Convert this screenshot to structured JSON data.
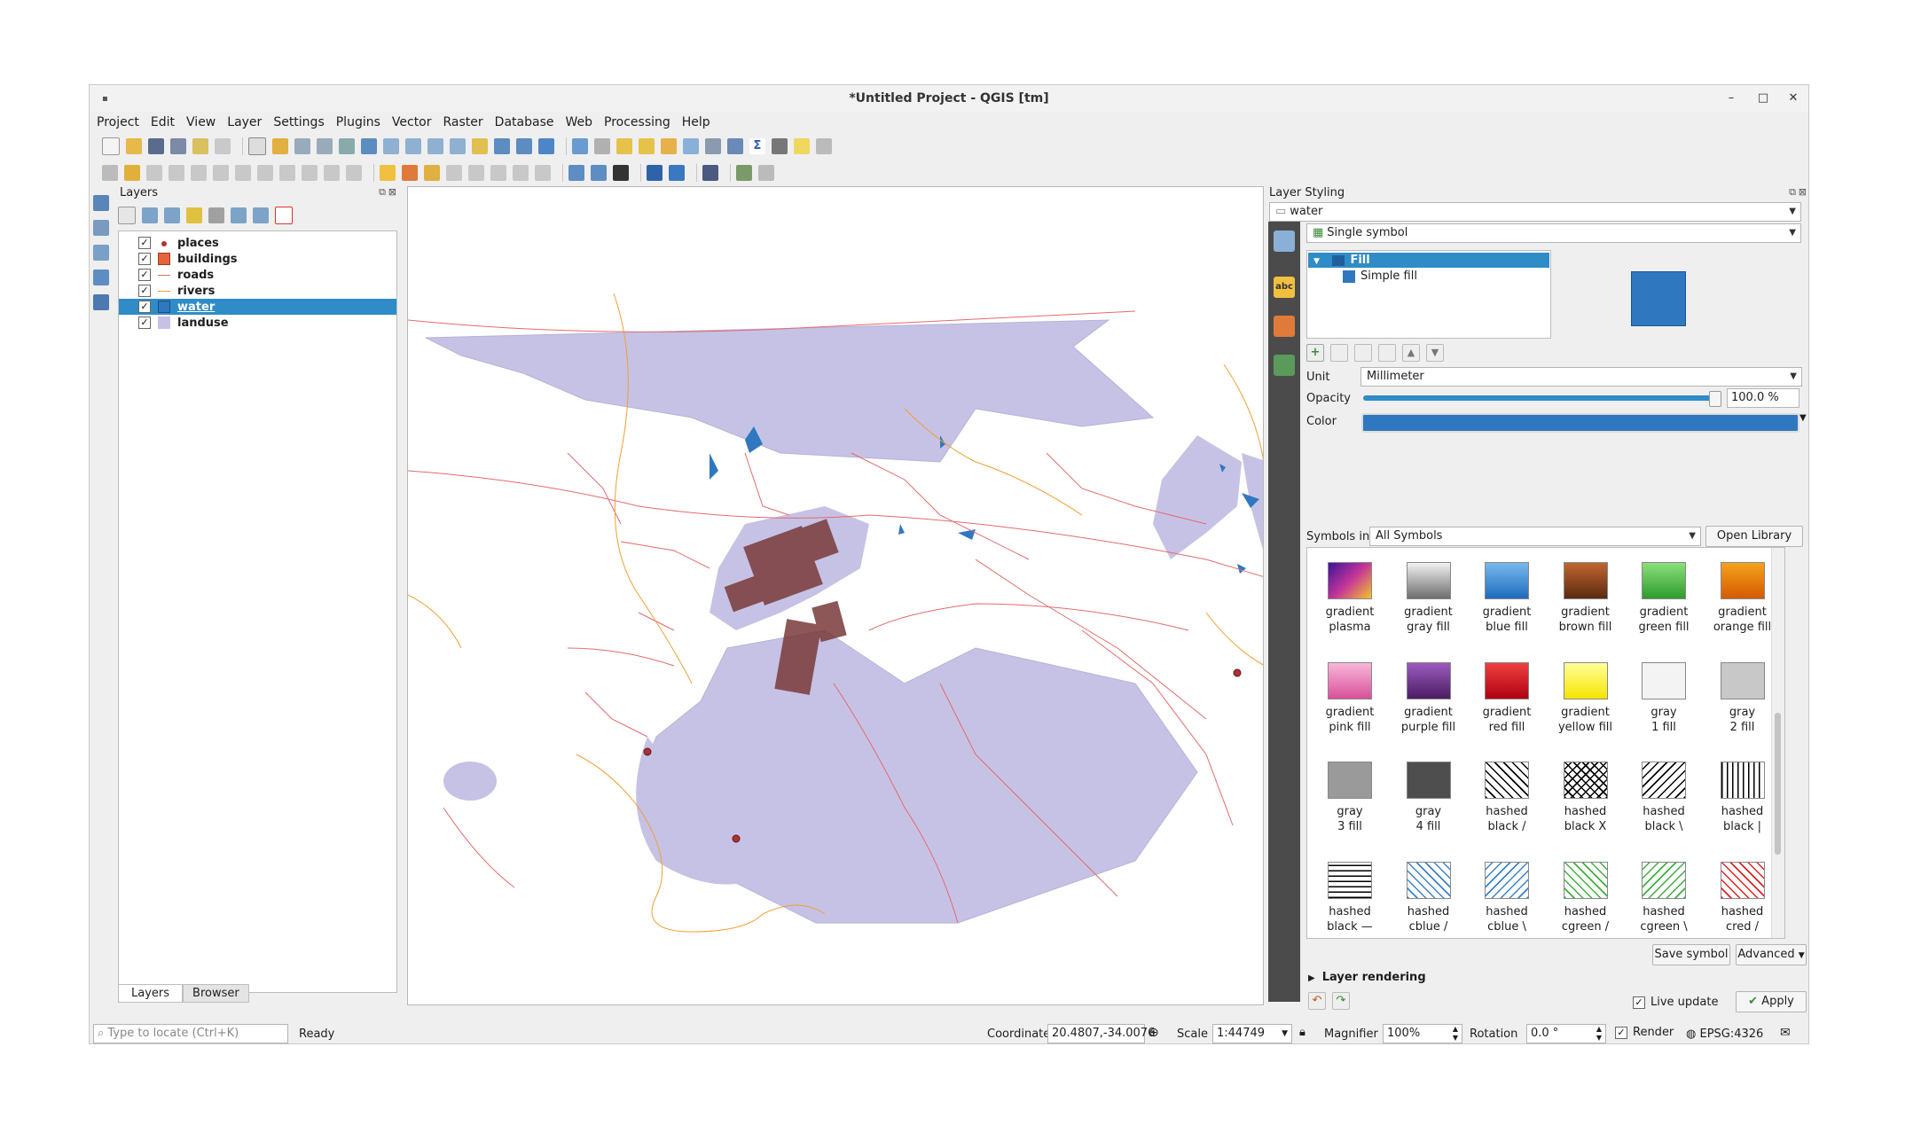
{
  "window": {
    "title": "*Untitled Project - QGIS [tm]",
    "minimize": "–",
    "maximize": "□",
    "close": "✕"
  },
  "menu": [
    "Project",
    "Edit",
    "View",
    "Layer",
    "Settings",
    "Plugins",
    "Vector",
    "Raster",
    "Database",
    "Web",
    "Processing",
    "Help"
  ],
  "layers_panel": {
    "title": "Layers",
    "layers": [
      {
        "name": "places",
        "checked": true,
        "symbol": "point",
        "color": "#b03030"
      },
      {
        "name": "buildings",
        "checked": true,
        "symbol": "polygon",
        "color": "#e4643c"
      },
      {
        "name": "roads",
        "checked": true,
        "symbol": "line",
        "color": "#e46a6a"
      },
      {
        "name": "rivers",
        "checked": true,
        "symbol": "line",
        "color": "#f0a030"
      },
      {
        "name": "water",
        "checked": true,
        "symbol": "polygon",
        "color": "#2f78bf",
        "selected": true
      },
      {
        "name": "landuse",
        "checked": true,
        "symbol": "polygon",
        "color": "#c6c2e6"
      }
    ],
    "tabs": [
      "Layers",
      "Browser"
    ]
  },
  "style_panel": {
    "title": "Layer Styling",
    "layer_combo": "water",
    "renderer": "Single symbol",
    "tree": {
      "root": "Fill",
      "child": "Simple fill"
    },
    "preview_color": "#2f78bf",
    "unit_label": "Unit",
    "unit_value": "Millimeter",
    "opacity_label": "Opacity",
    "opacity_value": "100.0 %",
    "opacity_fraction": 1.0,
    "color_label": "Color",
    "color_value": "#2f78bf",
    "symbols_in_label": "Symbols in",
    "symbols_in_value": "All Symbols",
    "open_library": "Open Library",
    "symbols": [
      {
        "l1": "gradient",
        "l2": "plasma",
        "style": "linear-gradient(135deg,#3b1696,#c3339a,#f4c22a)"
      },
      {
        "l1": "gradient",
        "l2": "gray fill",
        "style": "linear-gradient(#f1f1f1,#6d6d6d)"
      },
      {
        "l1": "gradient",
        "l2": "blue fill",
        "style": "linear-gradient(#77b9ee,#1f6bbd)"
      },
      {
        "l1": "gradient",
        "l2": "brown fill",
        "style": "linear-gradient(#c0662e,#5a2a12)"
      },
      {
        "l1": "gradient",
        "l2": "green fill",
        "style": "linear-gradient(#8be07a,#2e9b2e)"
      },
      {
        "l1": "gradient",
        "l2": "orange fill",
        "style": "linear-gradient(#f6a11d,#d45b00)"
      },
      {
        "l1": "gradient",
        "l2": "pink fill",
        "style": "linear-gradient(#f7b7d8,#d9509a)"
      },
      {
        "l1": "gradient",
        "l2": "purple fill",
        "style": "linear-gradient(#9c5bbd,#4b1c63)"
      },
      {
        "l1": "gradient",
        "l2": "red fill",
        "style": "linear-gradient(#ef4040,#b00010)"
      },
      {
        "l1": "gradient",
        "l2": "yellow fill",
        "style": "linear-gradient(#ffff9a,#f6e400)"
      },
      {
        "l1": "gray",
        "l2": "1 fill",
        "style": "#f3f3f3"
      },
      {
        "l1": "gray",
        "l2": "2 fill",
        "style": "#c8c8c8"
      },
      {
        "l1": "gray",
        "l2": "3 fill",
        "style": "#9a9a9a"
      },
      {
        "l1": "gray",
        "l2": "4 fill",
        "style": "#4e4e4e"
      },
      {
        "l1": "hashed",
        "l2": "black /",
        "style": "repeating-linear-gradient(45deg,#000 0 1.5px,#fff 1.5px 7px)"
      },
      {
        "l1": "hashed",
        "l2": "black X",
        "style": "repeating-linear-gradient(45deg,#000 0 1.5px,transparent 1.5px 7px),repeating-linear-gradient(-45deg,#000 0 1.5px,#fff 1.5px 7px)"
      },
      {
        "l1": "hashed",
        "l2": "black \\",
        "style": "repeating-linear-gradient(-45deg,#000 0 1.5px,#fff 1.5px 7px)"
      },
      {
        "l1": "hashed",
        "l2": "black |",
        "style": "repeating-linear-gradient(90deg,#000 0 1.5px,#fff 1.5px 6px)"
      },
      {
        "l1": "hashed",
        "l2": "black —",
        "style": "repeating-linear-gradient(0deg,#000 0 1.5px,#fff 1.5px 6px)"
      },
      {
        "l1": "hashed",
        "l2": "cblue /",
        "style": "repeating-linear-gradient(45deg,#3b82c7 0 1.5px,#fff 1.5px 7px)"
      },
      {
        "l1": "hashed",
        "l2": "cblue \\",
        "style": "repeating-linear-gradient(-45deg,#3b82c7 0 1.5px,#fff 1.5px 7px)"
      },
      {
        "l1": "hashed",
        "l2": "cgreen /",
        "style": "repeating-linear-gradient(45deg,#3fae3f 0 1.5px,#fff 1.5px 7px)"
      },
      {
        "l1": "hashed",
        "l2": "cgreen \\",
        "style": "repeating-linear-gradient(-45deg,#3fae3f 0 1.5px,#fff 1.5px 7px)"
      },
      {
        "l1": "hashed",
        "l2": "cred /",
        "style": "repeating-linear-gradient(45deg,#e02020 0 1.5px,#fff 1.5px 7px)"
      }
    ],
    "save_symbol": "Save symbol",
    "advanced": "Advanced",
    "layer_rendering": "Layer rendering",
    "live_update": "Live update",
    "apply": "Apply"
  },
  "status": {
    "locate_placeholder": "Type to locate (Ctrl+K)",
    "ready": "Ready",
    "coordinate_label": "Coordinate",
    "coordinate_value": "20.4807,-34.0076",
    "scale_label": "Scale",
    "scale_value": "1:44749",
    "magnifier_label": "Magnifier",
    "magnifier_value": "100%",
    "rotation_label": "Rotation",
    "rotation_value": "0.0 °",
    "render_label": "Render",
    "crs": "EPSG:4326"
  }
}
